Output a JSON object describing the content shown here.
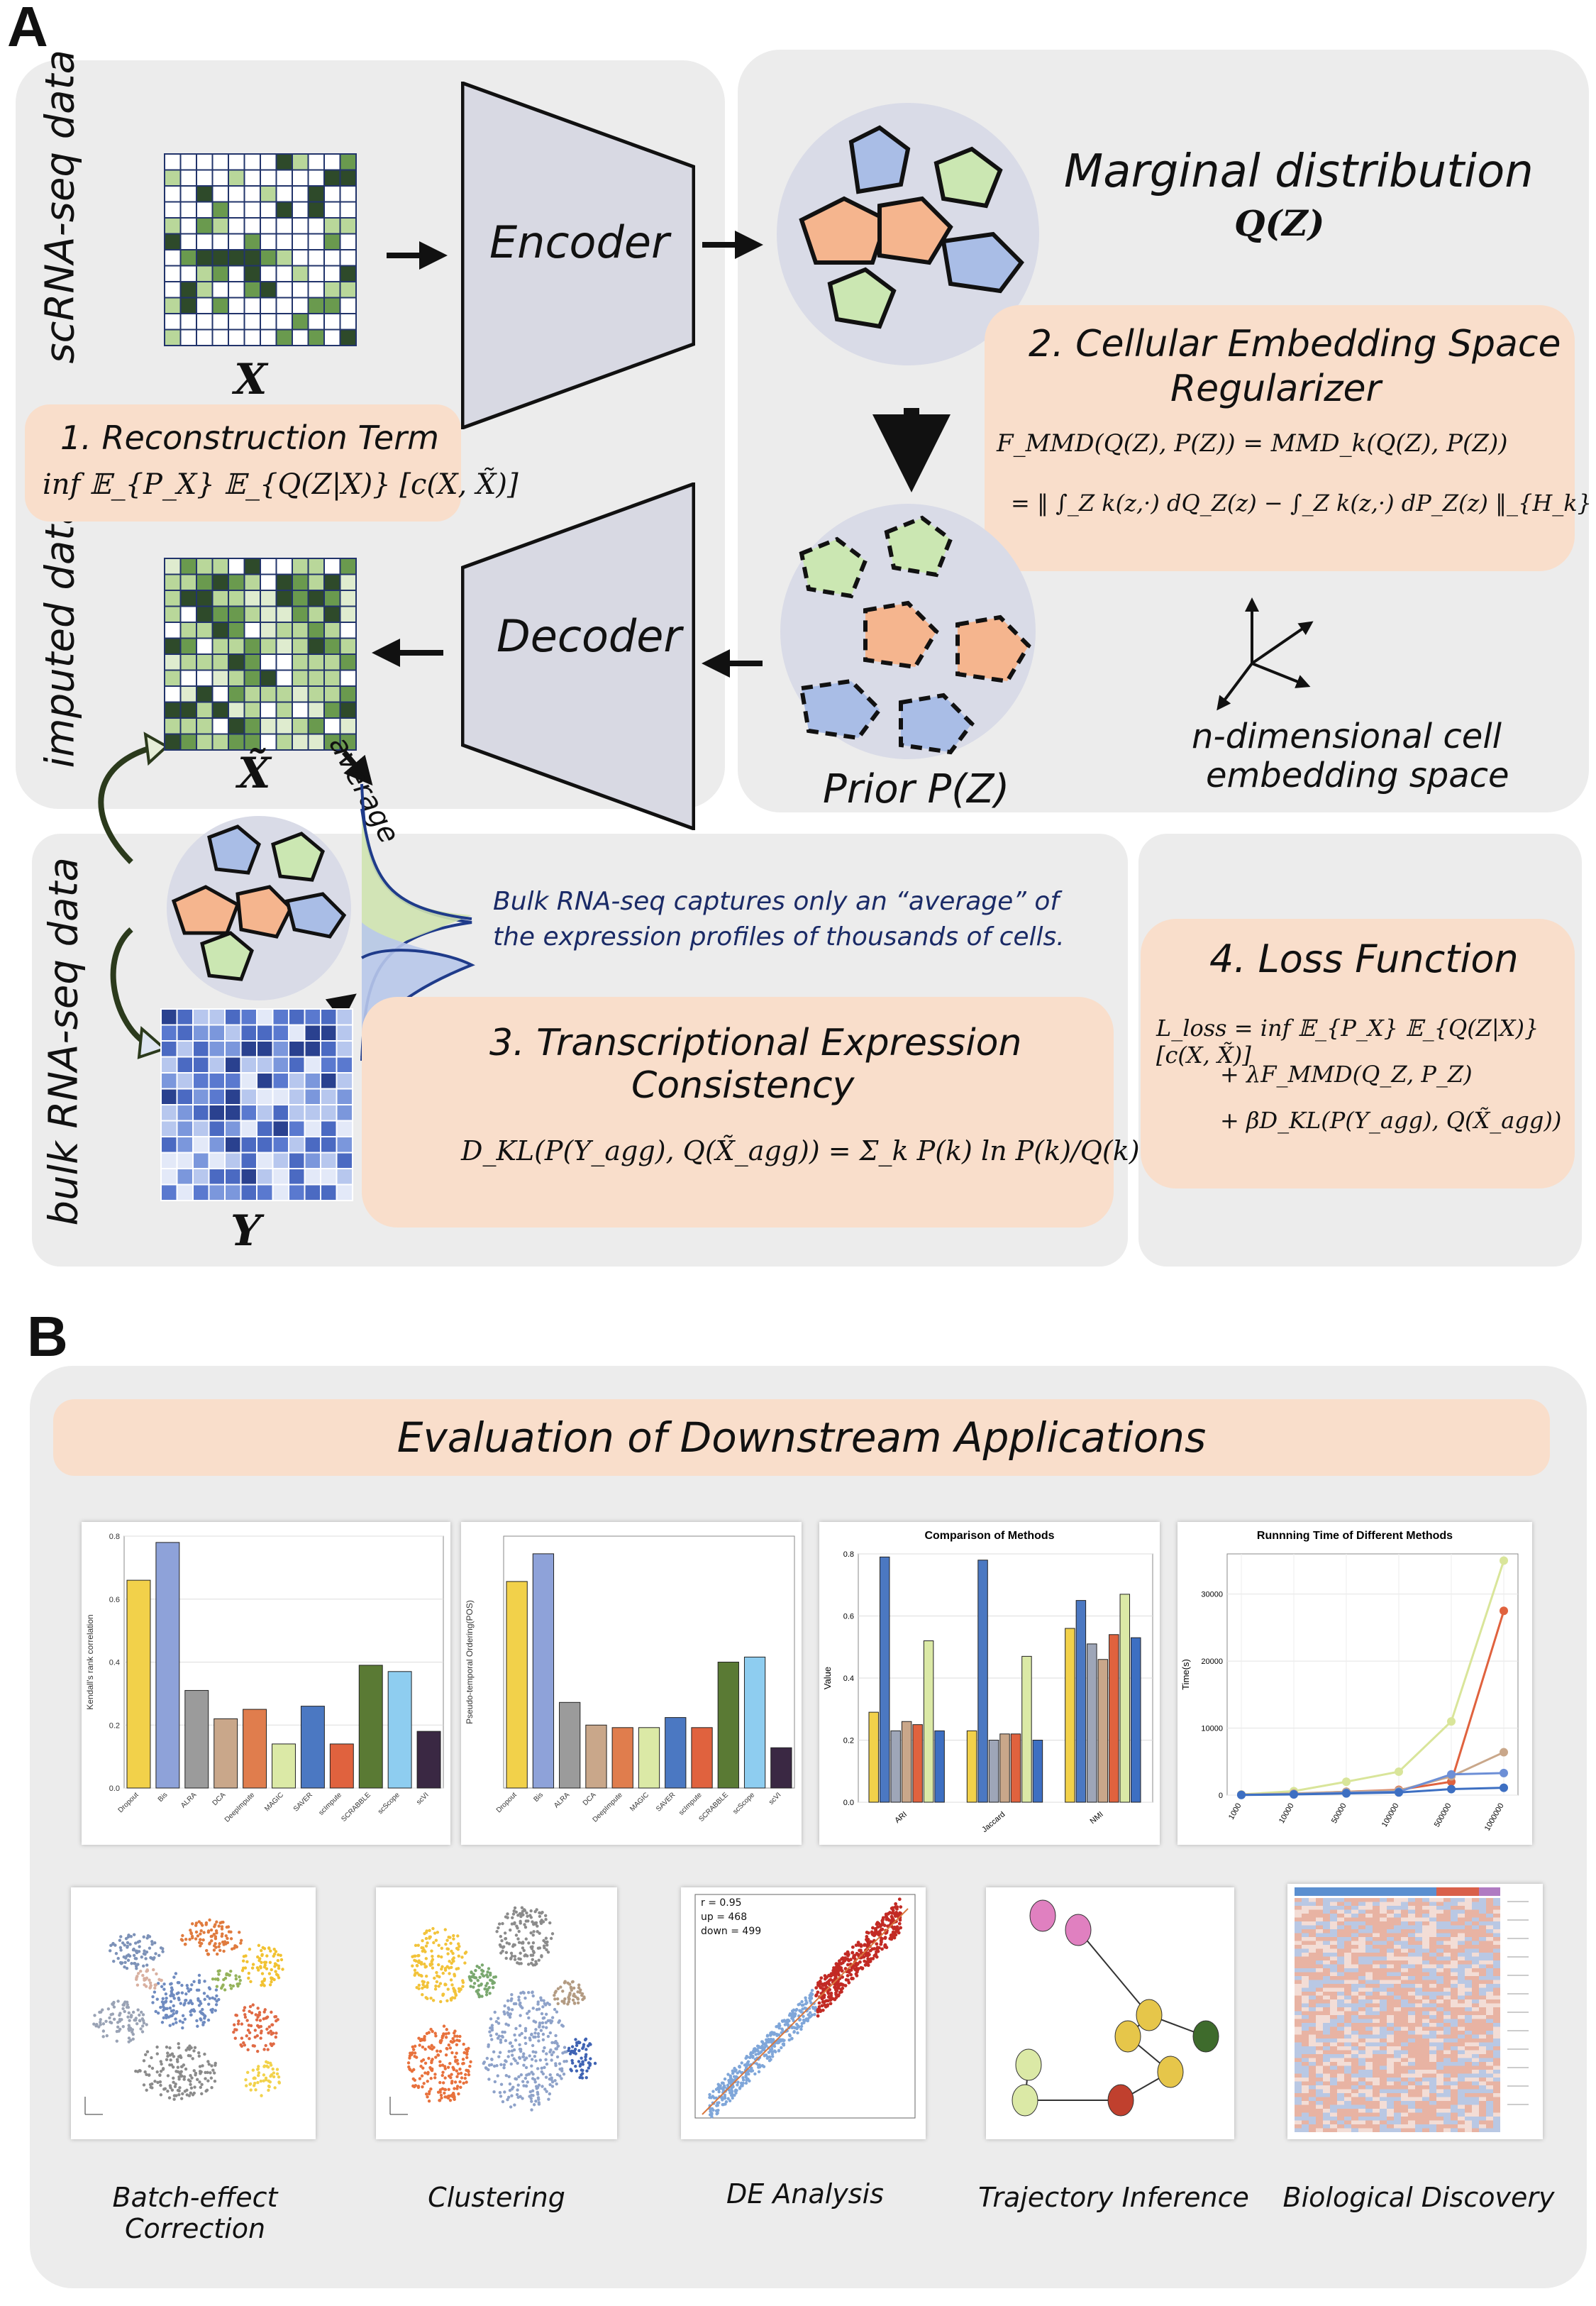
{
  "panel_a": {
    "letter": "A",
    "left_label": "scRNA-seq data",
    "imputed_label": "imputed data",
    "bulk_label": "bulk RNA-seq data",
    "x_symbol": "X",
    "xt_symbol": "X̃",
    "y_symbol": "Y",
    "encoder": "Encoder",
    "decoder": "Decoder",
    "average": "average",
    "recon_title": "1. Reconstruction Term",
    "recon_formula": "inf 𝔼_{P_X} 𝔼_{Q(Z|X)} [c(X, X̃)]",
    "marginal_title": "Marginal distribution",
    "marginal_sym": "Q(Z)",
    "prior_label": "Prior P(Z)",
    "reg_title_1": "2. Cellular Embedding Space",
    "reg_title_2": "Regularizer",
    "reg_formula_1": "F_MMD(Q(Z), P(Z)) = MMD_k(Q(Z), P(Z))",
    "reg_formula_2": "= ‖ ∫_Z k(z,·) dQ_Z(z) − ∫_Z k(z,·) dP_Z(z) ‖_{H_k}",
    "embed_label_1": "n-dimensional cell",
    "embed_label_2": "embedding space",
    "bulk_note_1": "Bulk RNA-seq captures only an “average” of",
    "bulk_note_2": "the expression profiles of thousands of cells.",
    "tec_title_1": "3. Transcriptional Expression",
    "tec_title_2": "Consistency",
    "tec_formula": "D_KL(P(Y_agg), Q(X̃_agg)) = Σ_k P(k) ln P(k)/Q(k)",
    "loss_title": "4. Loss Function",
    "loss_1": "L_loss = inf 𝔼_{P_X} 𝔼_{Q(Z|X)} [c(X, X̃)]",
    "loss_2": "+ λF_MMD(Q_Z, P_Z)",
    "loss_3": "+ βD_KL(P(Y_agg), Q(X̃_agg))"
  },
  "panel_b": {
    "letter": "B",
    "banner": "Evaluation of Downstream Applications",
    "captions": [
      "Batch-effect Correction",
      "Clustering",
      "DE Analysis",
      "Trajectory Inference",
      "Biological Discovery"
    ],
    "de_stats": [
      "r = 0.95",
      "up = 468",
      "down = 499"
    ]
  },
  "colors": {
    "panel_bg": "#ececec",
    "pill_bg": "#f9decb",
    "method_colors": [
      "#f2d14a",
      "#8ea2d9",
      "#9b9b9b",
      "#c9a78a",
      "#e07d4d",
      "#dbe9a6",
      "#4b78c2",
      "#e0623e",
      "#5a7a34",
      "#8ecdf0",
      "#3a2843"
    ]
  },
  "chart_data": [
    {
      "type": "bar",
      "title": "",
      "ylabel": "Kendall's rank correlation",
      "ylim": [
        0,
        0.8
      ],
      "yticks": [
        "0.0",
        "0.2",
        "0.4",
        "0.6",
        "0.8"
      ],
      "categories": [
        "Dropout",
        "Bis",
        "ALRA",
        "DCA",
        "DeepImpute",
        "MAGIC",
        "SAVER",
        "scImpute",
        "SCRABBLE",
        "scScope",
        "scVI"
      ],
      "values": [
        0.66,
        0.78,
        0.31,
        0.22,
        0.25,
        0.14,
        0.26,
        0.14,
        0.39,
        0.37,
        0.18
      ]
    },
    {
      "type": "bar",
      "title": "",
      "ylabel": "Pseudo-temporal Ordering(POS)",
      "ylim": [
        0,
        1.0
      ],
      "yticks": [],
      "categories": [
        "Dropout",
        "Bis",
        "ALRA",
        "DCA",
        "DeepImpute",
        "MAGIC",
        "SAVER",
        "scImpute",
        "SCRABBLE",
        "scScope",
        "scVI"
      ],
      "values": [
        0.82,
        0.93,
        0.34,
        0.25,
        0.24,
        0.24,
        0.28,
        0.24,
        0.5,
        0.52,
        0.16
      ]
    },
    {
      "type": "bar",
      "title": "Comparison of Methods",
      "ylabel": "Value",
      "ylim": [
        0,
        0.8
      ],
      "yticks": [
        "0.0",
        "0.2",
        "0.4",
        "0.6",
        "0.8"
      ],
      "categories": [
        "ARI",
        "Jaccard",
        "NMI"
      ],
      "series": [
        {
          "values": [
            0.29,
            0.23,
            0.56
          ]
        },
        {
          "values": [
            0.79,
            0.78,
            0.65
          ]
        },
        {
          "values": [
            0.23,
            0.2,
            0.51
          ]
        },
        {
          "values": [
            0.26,
            0.22,
            0.46
          ]
        },
        {
          "values": [
            0.25,
            0.22,
            0.54
          ]
        },
        {
          "values": [
            0.52,
            0.47,
            0.67
          ]
        },
        {
          "values": [
            0.23,
            0.2,
            0.53
          ]
        }
      ]
    },
    {
      "type": "line",
      "title": "Runnning Time of Different Methods",
      "ylabel": "Time(s)",
      "ylim": [
        0,
        36000
      ],
      "yticks": [
        "0",
        "10000",
        "20000",
        "30000"
      ],
      "x": [
        "1000",
        "10000",
        "50000",
        "100000",
        "500000",
        "1000000"
      ],
      "series": [
        {
          "values": [
            100,
            600,
            2000,
            3500,
            11000,
            35000
          ]
        },
        {
          "values": [
            50,
            200,
            500,
            800,
            2000,
            27500
          ]
        },
        {
          "values": [
            60,
            250,
            500,
            700,
            2800,
            6400
          ]
        },
        {
          "values": [
            40,
            150,
            350,
            500,
            3100,
            3300
          ]
        },
        {
          "values": [
            30,
            100,
            250,
            400,
            900,
            1100
          ]
        }
      ]
    }
  ]
}
